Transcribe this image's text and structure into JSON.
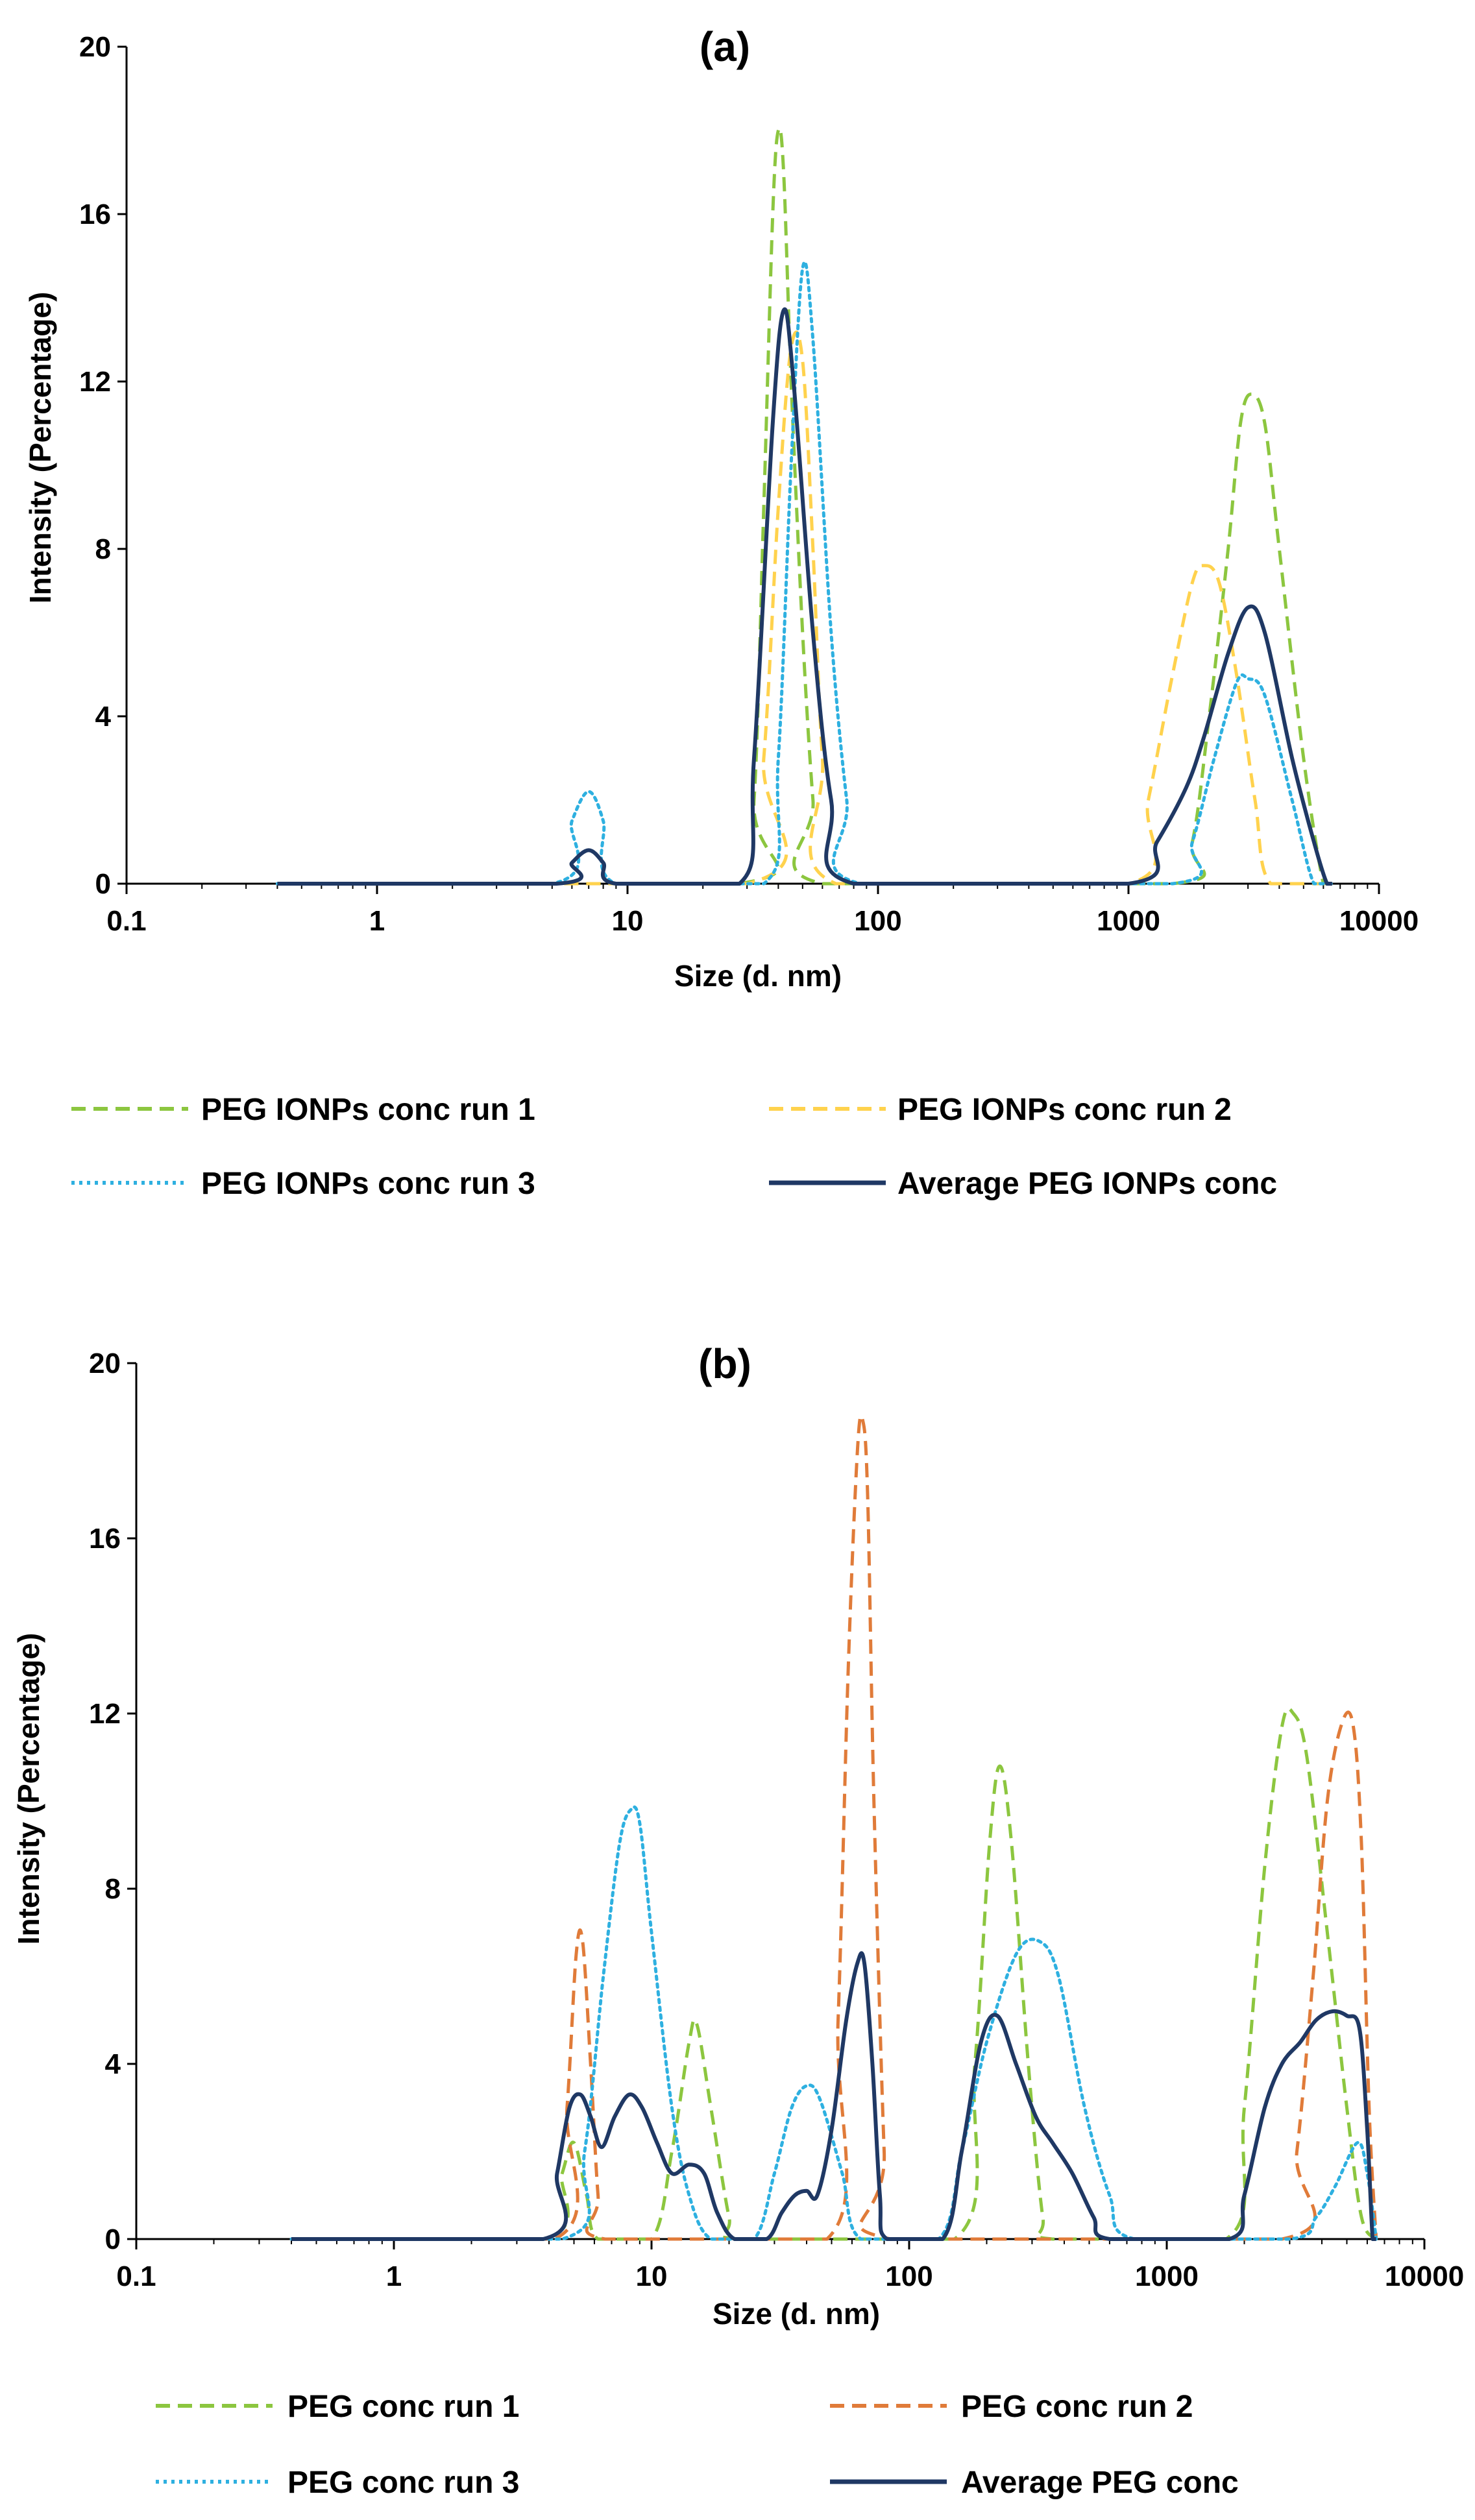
{
  "chart_data": [
    {
      "type": "line",
      "title": "(a)",
      "xlabel": "Size (d. nm)",
      "ylabel": "Intensity (Percentage)",
      "x_scale": "log",
      "xlim": [
        0.1,
        10000
      ],
      "ylim": [
        0,
        20
      ],
      "x_ticks": [
        "0.1",
        "1",
        "10",
        "100",
        "1000",
        "10000"
      ],
      "y_ticks": [
        "0",
        "4",
        "8",
        "12",
        "16",
        "20"
      ],
      "legend_position": "bottom",
      "series": [
        {
          "name": "PEG IONPs conc run  1",
          "color": "#8CC63F",
          "dash": "dashed",
          "points": [
            [
              0.4,
              0
            ],
            [
              28,
              0
            ],
            [
              32,
              2
            ],
            [
              35,
              9
            ],
            [
              38,
              16
            ],
            [
              40,
              18
            ],
            [
              42,
              17
            ],
            [
              45,
              12
            ],
            [
              50,
              6
            ],
            [
              55,
              2
            ],
            [
              60,
              0
            ],
            [
              1500,
              0
            ],
            [
              1800,
              1
            ],
            [
              2100,
              4
            ],
            [
              2500,
              8
            ],
            [
              2800,
              11
            ],
            [
              3100,
              11.7
            ],
            [
              3500,
              11
            ],
            [
              4000,
              8
            ],
            [
              5000,
              3
            ],
            [
              6000,
              0
            ],
            [
              6500,
              0
            ]
          ]
        },
        {
          "name": "PEG IONPs conc run 2",
          "color": "#FFD24D",
          "dash": "dashed",
          "points": [
            [
              0.4,
              0
            ],
            [
              30,
              0
            ],
            [
              35,
              3
            ],
            [
              40,
              9
            ],
            [
              45,
              12.8
            ],
            [
              50,
              12.5
            ],
            [
              55,
              8
            ],
            [
              60,
              3
            ],
            [
              68,
              0
            ],
            [
              1000,
              0
            ],
            [
              1200,
              2
            ],
            [
              1500,
              5
            ],
            [
              1800,
              7.2
            ],
            [
              2000,
              7.6
            ],
            [
              2300,
              7.2
            ],
            [
              2700,
              5
            ],
            [
              3200,
              2
            ],
            [
              3700,
              0
            ],
            [
              6500,
              0
            ]
          ]
        },
        {
          "name": "PEG IONPs conc run 3",
          "color": "#2EB0E0",
          "dash": "dotted",
          "points": [
            [
              0.4,
              0
            ],
            [
              5,
              0
            ],
            [
              6,
              1.5
            ],
            [
              7,
              2.2
            ],
            [
              8,
              1.5
            ],
            [
              9,
              0
            ],
            [
              35,
              0
            ],
            [
              40,
              3
            ],
            [
              45,
              10
            ],
            [
              50,
              14.7
            ],
            [
              55,
              13
            ],
            [
              65,
              6
            ],
            [
              75,
              2
            ],
            [
              85,
              0
            ],
            [
              1500,
              0
            ],
            [
              1800,
              1
            ],
            [
              2200,
              3
            ],
            [
              2700,
              4.8
            ],
            [
              3000,
              4.9
            ],
            [
              3500,
              4.5
            ],
            [
              4500,
              2
            ],
            [
              5500,
              0
            ],
            [
              6500,
              0
            ]
          ]
        },
        {
          "name": "Average PEG IONPs conc",
          "color": "#1F3864",
          "dash": "solid",
          "points": [
            [
              0.4,
              0
            ],
            [
              5.2,
              0
            ],
            [
              6,
              0.5
            ],
            [
              7,
              0.8
            ],
            [
              8,
              0.5
            ],
            [
              9,
              0
            ],
            [
              28,
              0
            ],
            [
              32,
              3
            ],
            [
              38,
              11
            ],
            [
              42,
              13.7
            ],
            [
              46,
              12
            ],
            [
              55,
              6
            ],
            [
              65,
              2
            ],
            [
              80,
              0
            ],
            [
              1000,
              0
            ],
            [
              1300,
              1
            ],
            [
              1700,
              2.3
            ],
            [
              2000,
              3.5
            ],
            [
              2500,
              5.5
            ],
            [
              3000,
              6.6
            ],
            [
              3500,
              6
            ],
            [
              4500,
              3
            ],
            [
              5500,
              1
            ],
            [
              6200,
              0
            ],
            [
              6500,
              0
            ]
          ]
        }
      ]
    },
    {
      "type": "line",
      "title": "(b)",
      "xlabel": "Size (d. nm)",
      "ylabel": "Intensity (Percentage)",
      "x_scale": "log",
      "xlim": [
        0.1,
        10000
      ],
      "ylim": [
        0,
        20
      ],
      "x_ticks": [
        "0.1",
        "1",
        "10",
        "100",
        "1000",
        "10000"
      ],
      "y_ticks": [
        "0",
        "4",
        "8",
        "12",
        "16",
        "20"
      ],
      "legend_position": "bottom",
      "series": [
        {
          "name": "PEG conc run 1",
          "color": "#8CC63F",
          "dash": "dashed",
          "points": [
            [
              0.4,
              0
            ],
            [
              3.8,
              0
            ],
            [
              4.5,
              1.5
            ],
            [
              5,
              2.2
            ],
            [
              5.6,
              1
            ],
            [
              6.2,
              0
            ],
            [
              10,
              0
            ],
            [
              12,
              2
            ],
            [
              14,
              4.5
            ],
            [
              15,
              4.9
            ],
            [
              17,
              3
            ],
            [
              20,
              0.5
            ],
            [
              22,
              0
            ],
            [
              150,
              0
            ],
            [
              180,
              4
            ],
            [
              205,
              9
            ],
            [
              225,
              10.8
            ],
            [
              250,
              9
            ],
            [
              290,
              4
            ],
            [
              330,
              0.5
            ],
            [
              360,
              0
            ],
            [
              1700,
              0
            ],
            [
              2000,
              3
            ],
            [
              2400,
              8.5
            ],
            [
              2800,
              11.7
            ],
            [
              3100,
              12
            ],
            [
              3500,
              11
            ],
            [
              4200,
              7
            ],
            [
              5000,
              3
            ],
            [
              5700,
              0.5
            ],
            [
              6500,
              0
            ]
          ]
        },
        {
          "name": "PEG conc run 2",
          "color": "#E07B39",
          "dash": "dashed",
          "points": [
            [
              0.4,
              0
            ],
            [
              4.2,
              0
            ],
            [
              4.7,
              3
            ],
            [
              5.1,
              6.5
            ],
            [
              5.4,
              6.8
            ],
            [
              5.8,
              4
            ],
            [
              6.2,
              1
            ],
            [
              6.6,
              0
            ],
            [
              48,
              0
            ],
            [
              53,
              5
            ],
            [
              58,
              13
            ],
            [
              63,
              18
            ],
            [
              66,
              18.7
            ],
            [
              69,
              17
            ],
            [
              73,
              10
            ],
            [
              80,
              2
            ],
            [
              85,
              0
            ],
            [
              2800,
              0
            ],
            [
              3200,
              2
            ],
            [
              3700,
              6
            ],
            [
              4200,
              10
            ],
            [
              4800,
              11.8
            ],
            [
              5300,
              11.7
            ],
            [
              5700,
              9
            ],
            [
              6100,
              3
            ],
            [
              6500,
              0
            ]
          ]
        },
        {
          "name": "PEG conc run 3",
          "color": "#2EB0E0",
          "dash": "dotted",
          "points": [
            [
              0.4,
              0
            ],
            [
              4.5,
              0
            ],
            [
              5.5,
              2
            ],
            [
              6.5,
              6
            ],
            [
              7.5,
              9
            ],
            [
              8.3,
              9.8
            ],
            [
              9,
              9.5
            ],
            [
              10,
              7
            ],
            [
              12,
              3
            ],
            [
              14,
              1
            ],
            [
              17,
              0
            ],
            [
              25,
              0
            ],
            [
              30,
              1.5
            ],
            [
              35,
              3
            ],
            [
              40,
              3.5
            ],
            [
              45,
              3.2
            ],
            [
              55,
              1.5
            ],
            [
              65,
              0
            ],
            [
              130,
              0
            ],
            [
              160,
              2
            ],
            [
              200,
              4.5
            ],
            [
              260,
              6.5
            ],
            [
              320,
              6.8
            ],
            [
              380,
              6
            ],
            [
              480,
              3
            ],
            [
              600,
              1
            ],
            [
              750,
              0
            ],
            [
              3000,
              0
            ],
            [
              3800,
              0.5
            ],
            [
              4500,
              1.2
            ],
            [
              5500,
              2.2
            ],
            [
              6000,
              1.5
            ],
            [
              6500,
              0
            ]
          ]
        },
        {
          "name": "Average PEG conc",
          "color": "#1F3864",
          "dash": "solid",
          "points": [
            [
              0.4,
              0
            ],
            [
              3.8,
              0
            ],
            [
              4.3,
              1.5
            ],
            [
              4.8,
              3
            ],
            [
              5.3,
              3.3
            ],
            [
              5.8,
              2.8
            ],
            [
              6.4,
              2.1
            ],
            [
              7.2,
              2.8
            ],
            [
              8.2,
              3.3
            ],
            [
              9.2,
              3
            ],
            [
              10.5,
              2.2
            ],
            [
              12,
              1.5
            ],
            [
              14,
              1.7
            ],
            [
              16,
              1.5
            ],
            [
              18,
              0.6
            ],
            [
              21,
              0
            ],
            [
              28,
              0
            ],
            [
              32,
              0.6
            ],
            [
              36,
              1
            ],
            [
              40,
              1.1
            ],
            [
              44,
              1
            ],
            [
              50,
              2.5
            ],
            [
              57,
              5
            ],
            [
              63,
              6.3
            ],
            [
              67,
              6.3
            ],
            [
              72,
              4
            ],
            [
              77,
              1
            ],
            [
              82,
              0
            ],
            [
              135,
              0
            ],
            [
              160,
              2
            ],
            [
              190,
              4.5
            ],
            [
              220,
              5.1
            ],
            [
              260,
              4
            ],
            [
              310,
              2.8
            ],
            [
              360,
              2.2
            ],
            [
              430,
              1.5
            ],
            [
              520,
              0.5
            ],
            [
              600,
              0
            ],
            [
              1750,
              0
            ],
            [
              2000,
              1
            ],
            [
              2400,
              3
            ],
            [
              2800,
              4
            ],
            [
              3300,
              4.5
            ],
            [
              3800,
              5
            ],
            [
              4400,
              5.2
            ],
            [
              5000,
              5.1
            ],
            [
              5600,
              4.8
            ],
            [
              6000,
              2.5
            ],
            [
              6300,
              0
            ],
            [
              6500,
              0
            ]
          ]
        }
      ]
    }
  ]
}
